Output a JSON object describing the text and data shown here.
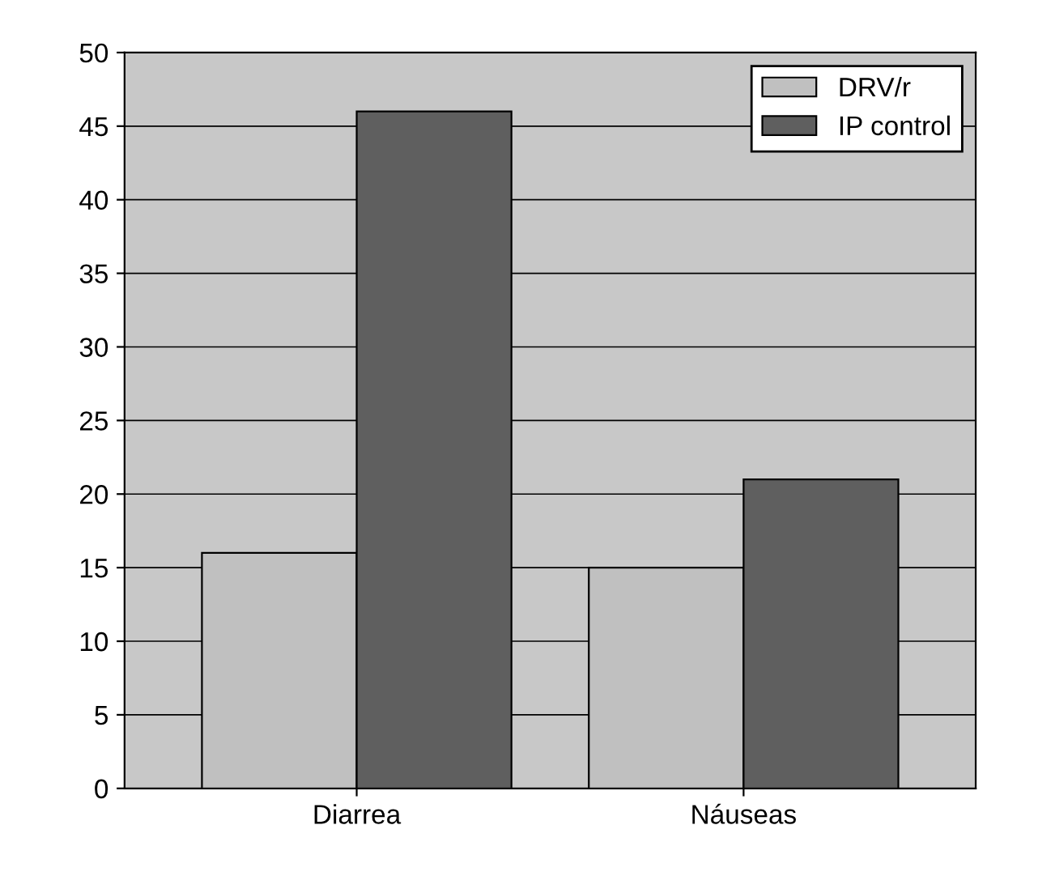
{
  "chart_data": {
    "type": "bar",
    "categories": [
      "Diarrea",
      "Náuseas"
    ],
    "series": [
      {
        "name": "DRV/r",
        "color": "#c0c0c0",
        "values": [
          16,
          15
        ]
      },
      {
        "name": "IP control",
        "color": "#5f5f5f",
        "values": [
          46,
          21
        ]
      }
    ],
    "ylim": [
      0,
      50
    ],
    "yticks": [
      0,
      5,
      10,
      15,
      20,
      25,
      30,
      35,
      40,
      45,
      50
    ],
    "grid": "y",
    "legend": "top right"
  }
}
